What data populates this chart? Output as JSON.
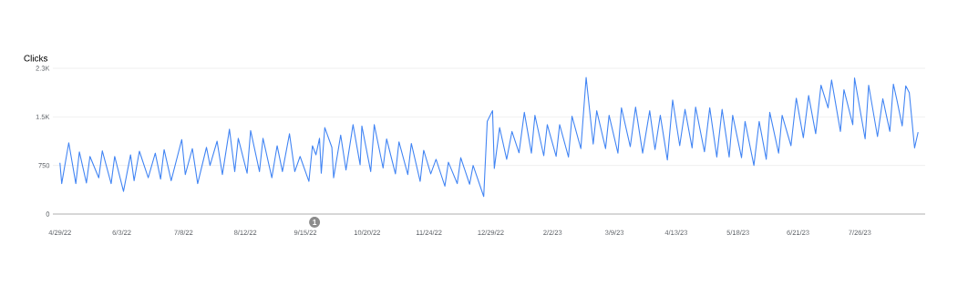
{
  "chart_data": {
    "type": "line",
    "ylabel": "Clicks",
    "grid": "y",
    "color": "#4285f4",
    "xlim": [
      "2022-04-25",
      "2023-09-01"
    ],
    "ylim": [
      0,
      2250
    ],
    "yticks": [
      0,
      750,
      {
        "value": 1500,
        "label": "1.5K"
      },
      {
        "value": 2250,
        "label": "2.3K"
      }
    ],
    "xticks": [
      {
        "value": "2022-04-29",
        "label": "4/29/22"
      },
      {
        "value": "2022-06-03",
        "label": "6/3/22"
      },
      {
        "value": "2022-07-08",
        "label": "7/8/22"
      },
      {
        "value": "2022-08-12",
        "label": "8/12/22"
      },
      {
        "value": "2022-09-15",
        "label": "9/15/22"
      },
      {
        "value": "2022-10-20",
        "label": "10/20/22"
      },
      {
        "value": "2022-11-24",
        "label": "11/24/22"
      },
      {
        "value": "2022-12-29",
        "label": "12/29/22"
      },
      {
        "value": "2023-02-02",
        "label": "2/2/23"
      },
      {
        "value": "2023-03-09",
        "label": "3/9/23"
      },
      {
        "value": "2023-04-13",
        "label": "4/13/23"
      },
      {
        "value": "2023-05-18",
        "label": "5/18/23"
      },
      {
        "value": "2023-06-21",
        "label": "6/21/23"
      },
      {
        "value": "2023-07-26",
        "label": "7/26/23"
      }
    ],
    "annotations": [
      "1"
    ],
    "x": [
      "2022-04-29",
      "2022-04-30",
      "2022-05-04",
      "2022-05-08",
      "2022-05-10",
      "2022-05-14",
      "2022-05-16",
      "2022-05-21",
      "2022-05-23",
      "2022-05-28",
      "2022-05-30",
      "2022-06-04",
      "2022-06-08",
      "2022-06-10",
      "2022-06-13",
      "2022-06-18",
      "2022-06-22",
      "2022-06-25",
      "2022-06-27",
      "2022-07-01",
      "2022-07-07",
      "2022-07-09",
      "2022-07-13",
      "2022-07-16",
      "2022-07-21",
      "2022-07-23",
      "2022-07-27",
      "2022-07-30",
      "2022-08-03",
      "2022-08-06",
      "2022-08-08",
      "2022-08-13",
      "2022-08-15",
      "2022-08-20",
      "2022-08-22",
      "2022-08-27",
      "2022-08-30",
      "2022-09-02",
      "2022-09-06",
      "2022-09-09",
      "2022-09-12",
      "2022-09-17",
      "2022-09-19",
      "2022-09-21",
      "2022-09-23",
      "2022-09-24",
      "2022-09-26",
      "2022-09-30",
      "2022-10-01",
      "2022-10-05",
      "2022-10-08",
      "2022-10-12",
      "2022-10-16",
      "2022-10-17",
      "2022-10-22",
      "2022-10-24",
      "2022-10-29",
      "2022-10-31",
      "2022-11-05",
      "2022-11-07",
      "2022-11-12",
      "2022-11-14",
      "2022-11-19",
      "2022-11-21",
      "2022-11-25",
      "2022-11-28",
      "2022-12-03",
      "2022-12-05",
      "2022-12-10",
      "2022-12-12",
      "2022-12-17",
      "2022-12-19",
      "2022-12-25",
      "2022-12-27",
      "2022-12-30",
      "2022-12-31",
      "2023-01-03",
      "2023-01-07",
      "2023-01-10",
      "2023-01-14",
      "2023-01-17",
      "2023-01-21",
      "2023-01-23",
      "2023-01-28",
      "2023-01-30",
      "2023-02-04",
      "2023-02-06",
      "2023-02-11",
      "2023-02-13",
      "2023-02-18",
      "2023-02-21",
      "2023-02-25",
      "2023-02-27",
      "2023-03-04",
      "2023-03-06",
      "2023-03-11",
      "2023-03-13",
      "2023-03-18",
      "2023-03-21",
      "2023-03-25",
      "2023-03-29",
      "2023-04-01",
      "2023-04-04",
      "2023-04-08",
      "2023-04-11",
      "2023-04-15",
      "2023-04-18",
      "2023-04-22",
      "2023-04-24",
      "2023-04-29",
      "2023-05-02",
      "2023-05-06",
      "2023-05-09",
      "2023-05-13",
      "2023-05-15",
      "2023-05-20",
      "2023-05-22",
      "2023-05-27",
      "2023-05-30",
      "2023-06-03",
      "2023-06-05",
      "2023-06-10",
      "2023-06-12",
      "2023-06-17",
      "2023-06-20",
      "2023-06-24",
      "2023-06-27",
      "2023-07-01",
      "2023-07-04",
      "2023-07-08",
      "2023-07-10",
      "2023-07-15",
      "2023-07-17",
      "2023-07-22",
      "2023-07-23",
      "2023-07-29",
      "2023-07-31",
      "2023-08-05",
      "2023-08-08",
      "2023-08-12",
      "2023-08-14",
      "2023-08-16",
      "2023-08-19",
      "2023-08-21",
      "2023-08-23",
      "2023-08-26",
      "2023-08-28"
    ],
    "values": [
      790,
      470,
      1100,
      470,
      960,
      480,
      890,
      560,
      975,
      470,
      890,
      350,
      915,
      515,
      970,
      560,
      940,
      540,
      995,
      515,
      1150,
      610,
      1010,
      470,
      1030,
      750,
      1125,
      610,
      1310,
      655,
      1170,
      630,
      1290,
      655,
      1170,
      560,
      1055,
      655,
      1240,
      655,
      890,
      505,
      1055,
      915,
      1170,
      630,
      1335,
      1030,
      560,
      1220,
      680,
      1380,
      760,
      1360,
      655,
      1380,
      710,
      1160,
      620,
      1115,
      610,
      1090,
      505,
      985,
      620,
      845,
      430,
      800,
      470,
      870,
      460,
      750,
      270,
      1430,
      1595,
      705,
      1335,
      845,
      1275,
      945,
      1570,
      940,
      1525,
      900,
      1380,
      890,
      1380,
      880,
      1510,
      1010,
      2110,
      1080,
      1595,
      1010,
      1525,
      940,
      1640,
      1040,
      1650,
      940,
      1595,
      995,
      1525,
      835,
      1760,
      1055,
      1615,
      1020,
      1650,
      960,
      1640,
      880,
      1615,
      880,
      1525,
      870,
      1430,
      750,
      1430,
      845,
      1570,
      940,
      1525,
      1055,
      1790,
      1180,
      1830,
      1240,
      1990,
      1640,
      2070,
      1275,
      1920,
      1380,
      2100,
      1160,
      1990,
      1195,
      1780,
      1275,
      2005,
      1760,
      1360,
      1980,
      1875,
      1020,
      1265
    ]
  }
}
